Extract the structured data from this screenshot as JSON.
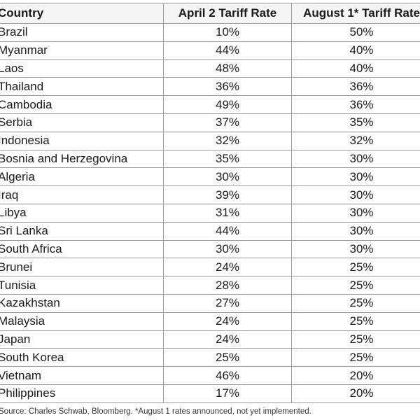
{
  "table": {
    "headers": [
      "Country",
      "April 2 Tariff Rate",
      "August 1* Tariff Rate"
    ],
    "rows": [
      [
        "Brazil",
        "10%",
        "50%"
      ],
      [
        "Myanmar",
        "44%",
        "40%"
      ],
      [
        "Laos",
        "48%",
        "40%"
      ],
      [
        "Thailand",
        "36%",
        "36%"
      ],
      [
        "Cambodia",
        "49%",
        "36%"
      ],
      [
        "Serbia",
        "37%",
        "35%"
      ],
      [
        "Indonesia",
        "32%",
        "32%"
      ],
      [
        "Bosnia and Herzegovina",
        "35%",
        "30%"
      ],
      [
        "Algeria",
        "30%",
        "30%"
      ],
      [
        "Iraq",
        "39%",
        "30%"
      ],
      [
        "Libya",
        "31%",
        "30%"
      ],
      [
        "Sri Lanka",
        "44%",
        "30%"
      ],
      [
        "South Africa",
        "30%",
        "30%"
      ],
      [
        "Brunei",
        "24%",
        "25%"
      ],
      [
        "Tunisia",
        "28%",
        "25%"
      ],
      [
        "Kazakhstan",
        "27%",
        "25%"
      ],
      [
        "Malaysia",
        "24%",
        "25%"
      ],
      [
        "Japan",
        "24%",
        "25%"
      ],
      [
        "South Korea",
        "25%",
        "25%"
      ],
      [
        "Vietnam",
        "46%",
        "20%"
      ],
      [
        "Philippines",
        "17%",
        "20%"
      ]
    ]
  },
  "footnote": "Source: Charles Schwab, Bloomberg. *August 1 rates announced, not yet implemented."
}
